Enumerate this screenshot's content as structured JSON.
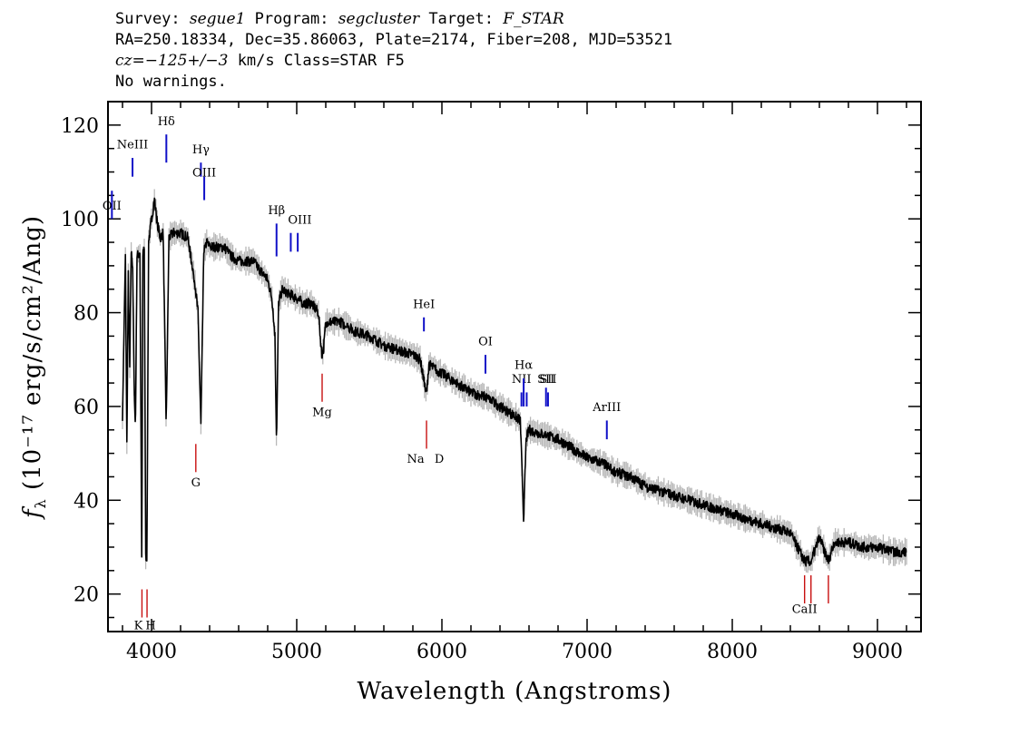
{
  "header": {
    "line1": {
      "survey_label": "Survey: ",
      "survey": "segue1",
      "program_label": " Program: ",
      "program": "segcluster",
      "target_label": " Target: ",
      "target": "F_STAR"
    },
    "line2": "RA=250.18334, Dec=35.86063, Plate=2174, Fiber=208, MJD=53521",
    "line3": {
      "cz": "cz=−125+/−3",
      "rest": " km/s Class=STAR F5"
    },
    "line4": "No warnings."
  },
  "chart_data": {
    "type": "line",
    "xlabel": "Wavelength (Angstroms)",
    "ylabel": "fλ (10⁻¹⁷ erg/s/cm²/Ang)",
    "xlim": [
      3700,
      9300
    ],
    "ylim": [
      12,
      125
    ],
    "x_ticks": [
      4000,
      5000,
      6000,
      7000,
      8000,
      9000
    ],
    "y_ticks": [
      20,
      40,
      60,
      80,
      100,
      120
    ],
    "grid": false,
    "colors": {
      "spectrum": "#000000",
      "error": "#b8b8b8",
      "emission": "#1010c8",
      "absorption": "#c81010"
    },
    "series": [
      {
        "x": [
          3800,
          3820,
          3830,
          3840,
          3850,
          3860,
          3870,
          3880,
          3889,
          3900,
          3920,
          3933,
          3940,
          3950,
          3960,
          3968,
          3980,
          4000,
          4020,
          4040,
          4060,
          4080,
          4101,
          4120,
          4150,
          4200,
          4250,
          4300,
          4320,
          4340,
          4360,
          4380,
          4400,
          4450,
          4500,
          4550,
          4600,
          4650,
          4700,
          4750,
          4800,
          4830,
          4850,
          4861,
          4875,
          4900,
          4950,
          5000,
          5050,
          5100,
          5150,
          5172,
          5184,
          5200,
          5250,
          5300,
          5400,
          5500,
          5600,
          5700,
          5800,
          5850,
          5890,
          5896,
          5910,
          5950,
          6000,
          6100,
          6200,
          6300,
          6400,
          6500,
          6540,
          6563,
          6580,
          6600,
          6700,
          6800,
          6900,
          7000,
          7100,
          7200,
          7300,
          7400,
          7500,
          7600,
          7700,
          7800,
          7900,
          8000,
          8100,
          8200,
          8300,
          8400,
          8498,
          8542,
          8600,
          8662,
          8700,
          8800,
          8900,
          9000,
          9100,
          9200
        ],
        "values": [
          58,
          92,
          52,
          88,
          68,
          93,
          90,
          65,
          55,
          92,
          93,
          25,
          92,
          94,
          28,
          28,
          95,
          100,
          104,
          99,
          96,
          97,
          56,
          96,
          97,
          97,
          96,
          86,
          80,
          56,
          93,
          95,
          94,
          94,
          94,
          92,
          91,
          91,
          91,
          89,
          87,
          83,
          75,
          52,
          82,
          85,
          84,
          83,
          82,
          82,
          80,
          71,
          72,
          78,
          78,
          78,
          76,
          75,
          73,
          72,
          71,
          70,
          63,
          63,
          69,
          68,
          67,
          65,
          63,
          62,
          60,
          58,
          57,
          36,
          53,
          55,
          54,
          53,
          51,
          49,
          48,
          46,
          45,
          43,
          42,
          41,
          40,
          39,
          38,
          37,
          36,
          35,
          34,
          33,
          27,
          27,
          32,
          27,
          31,
          31,
          30,
          30,
          29,
          29
        ]
      }
    ],
    "annotations": {
      "emission": [
        {
          "label": "OII",
          "x": 3727,
          "label_y": 102,
          "y0": 100,
          "y1": 106
        },
        {
          "label": "NeIII",
          "x": 3869,
          "label_y": 115,
          "y0": 109,
          "y1": 113
        },
        {
          "label": "Hδ",
          "x": 4102,
          "label_y": 120,
          "y0": 112,
          "y1": 118
        },
        {
          "label": "Hγ",
          "x": 4340,
          "label_y": 114,
          "y0": 109,
          "y1": 112
        },
        {
          "label": "OIII",
          "x": 4363,
          "label_y": 109,
          "y0": 104,
          "y1": 109
        },
        {
          "label": "Hβ",
          "x": 4861,
          "label_y": 101,
          "y0": 92,
          "y1": 99
        },
        {
          "label": "OIII",
          "x": 4959,
          "label_y": 99,
          "y0": 93,
          "y1": 97
        },
        {
          "label": "OIII",
          "x": 5007,
          "label_y": null,
          "y0": 93,
          "y1": 97
        },
        {
          "label": "HeI",
          "x": 5876,
          "label_y": 81,
          "y0": 76,
          "y1": 79
        },
        {
          "label": "OI",
          "x": 6300,
          "label_y": 73,
          "y0": 67,
          "y1": 71
        },
        {
          "label": "NII",
          "x": 6548,
          "label_y": 65,
          "y0": 60,
          "y1": 63
        },
        {
          "label": "Hα",
          "x": 6563,
          "label_y": 68,
          "y0": 60,
          "y1": 66
        },
        {
          "label": "NII",
          "x": 6584,
          "label_y": null,
          "y0": 60,
          "y1": 63
        },
        {
          "label": "SII",
          "x": 6717,
          "label_y": 65,
          "y0": 60,
          "y1": 64
        },
        {
          "label": "SII",
          "x": 6731,
          "label_y": 65,
          "y0": 60,
          "y1": 63
        },
        {
          "label": "ArIII",
          "x": 7136,
          "label_y": 59,
          "y0": 53,
          "y1": 57
        }
      ],
      "absorption": [
        {
          "label": "K",
          "x": 3934,
          "label_y": 12.5,
          "y0": 15,
          "y1": 21
        },
        {
          "label": "H",
          "x": 3969,
          "label_y": 12.5,
          "y0": 15,
          "y1": 21
        },
        {
          "label": "G",
          "x": 4305,
          "label_y": 43,
          "y0": 46,
          "y1": 52
        },
        {
          "label": "Mg",
          "x": 5175,
          "label_y": 58,
          "y0": 61,
          "y1": 67
        },
        {
          "label": "Na",
          "x": 5894,
          "label_y": 48,
          "y0": 51,
          "y1": 57
        },
        {
          "label": "D",
          "x": 5894,
          "label_y": 48,
          "y0": null,
          "y1": null
        },
        {
          "label": "CaII",
          "x": 8498,
          "label_y": 16,
          "y0": 18,
          "y1": 24
        },
        {
          "label": "",
          "x": 8542,
          "label_y": null,
          "y0": 18,
          "y1": 24
        },
        {
          "label": "",
          "x": 8662,
          "label_y": null,
          "y0": 18,
          "y1": 24
        }
      ]
    }
  }
}
